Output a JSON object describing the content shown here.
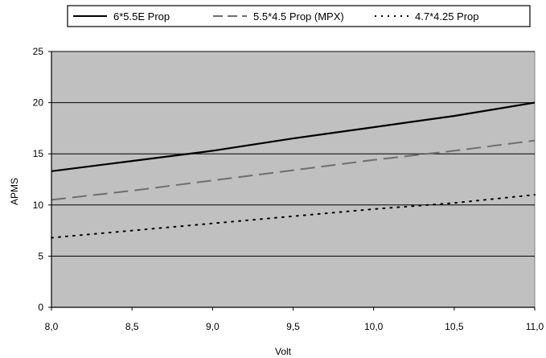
{
  "chart_data": {
    "type": "line",
    "xlabel": "Volt",
    "ylabel": "APMS",
    "xlim": [
      8.0,
      11.0
    ],
    "ylim": [
      0,
      25
    ],
    "x_ticks": [
      "8,0",
      "8,5",
      "9,0",
      "9,5",
      "10,0",
      "10,5",
      "11,0"
    ],
    "y_ticks": [
      "0",
      "5",
      "10",
      "15",
      "20",
      "25"
    ],
    "x": [
      8.0,
      8.5,
      9.0,
      9.5,
      10.0,
      10.5,
      11.0
    ],
    "series": [
      {
        "name": "6*5.5E Prop",
        "style": "solid",
        "color": "#000000",
        "values": [
          13.3,
          14.3,
          15.3,
          16.5,
          17.6,
          18.7,
          20.0
        ]
      },
      {
        "name": "5.5*4.5 Prop (MPX)",
        "style": "dashed",
        "color": "#6e6e6e",
        "values": [
          10.5,
          11.4,
          12.4,
          13.4,
          14.4,
          15.3,
          16.3
        ]
      },
      {
        "name": "4.7*4.25 Prop",
        "style": "dotted",
        "color": "#000000",
        "values": [
          6.8,
          7.5,
          8.2,
          8.9,
          9.6,
          10.2,
          11.0
        ]
      }
    ],
    "grid": "horizontal",
    "plot_background": "#c0c0c0",
    "legend_position": "top"
  }
}
